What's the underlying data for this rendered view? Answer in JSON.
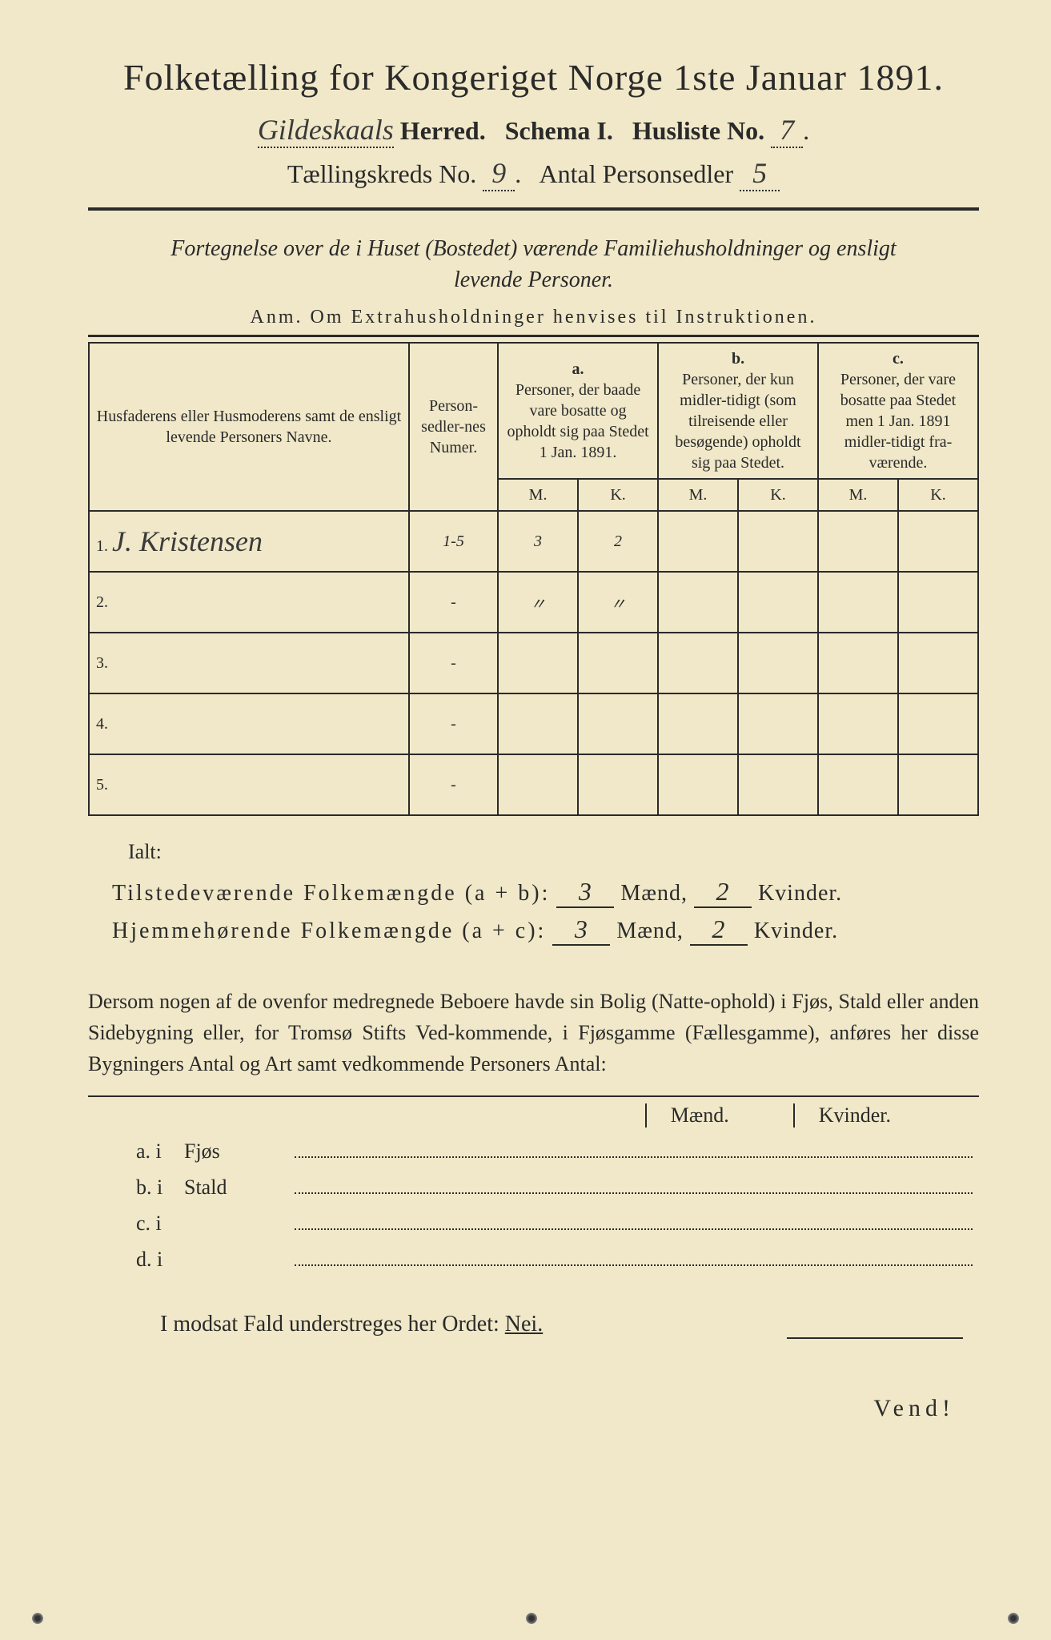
{
  "header": {
    "title": "Folketælling for Kongeriget Norge 1ste Januar 1891.",
    "herred_hand": "Gildeskaals",
    "herred_label": "Herred.",
    "schema": "Schema I.",
    "husliste_label": "Husliste No.",
    "husliste_no": "7",
    "kreds_label": "Tællingskreds No.",
    "kreds_no": "9",
    "personsedler_label": "Antal Personsedler",
    "personsedler_no": "5"
  },
  "subtitle": {
    "line1": "Fortegnelse over de i Huset (Bostedet) værende Familiehusholdninger og ensligt",
    "line2": "levende Personer.",
    "anm": "Anm.  Om Extrahusholdninger henvises til Instruktionen."
  },
  "table": {
    "col_name": "Husfaderens eller Husmoderens samt de ensligt levende Personers Navne.",
    "col_num": "Person-sedler-nes Numer.",
    "col_a_head": "a.",
    "col_a": "Personer, der baade vare bosatte og opholdt sig paa Stedet 1 Jan. 1891.",
    "col_b_head": "b.",
    "col_b": "Personer, der kun midler-tidigt (som tilreisende eller besøgende) opholdt sig paa Stedet.",
    "col_c_head": "c.",
    "col_c": "Personer, der vare bosatte paa Stedet men 1 Jan. 1891 midler-tidigt fra-værende.",
    "m": "M.",
    "k": "K.",
    "rows": [
      {
        "n": "1.",
        "name": "J. Kristensen",
        "num": "1-5",
        "am": "3",
        "ak": "2",
        "bm": "",
        "bk": "",
        "cm": "",
        "ck": ""
      },
      {
        "n": "2.",
        "name": "",
        "num": "-",
        "am": "〃",
        "ak": "〃",
        "bm": "",
        "bk": "",
        "cm": "",
        "ck": ""
      },
      {
        "n": "3.",
        "name": "",
        "num": "-",
        "am": "",
        "ak": "",
        "bm": "",
        "bk": "",
        "cm": "",
        "ck": ""
      },
      {
        "n": "4.",
        "name": "",
        "num": "-",
        "am": "",
        "ak": "",
        "bm": "",
        "bk": "",
        "cm": "",
        "ck": ""
      },
      {
        "n": "5.",
        "name": "",
        "num": "-",
        "am": "",
        "ak": "",
        "bm": "",
        "bk": "",
        "cm": "",
        "ck": ""
      }
    ]
  },
  "totals": {
    "ialt": "Ialt:",
    "line1_label": "Tilstedeværende Folkemængde (a + b):",
    "line1_m": "3",
    "line1_k": "2",
    "line2_label": "Hjemmehørende Folkemængde (a + c):",
    "line2_m": "3",
    "line2_k": "2",
    "maend": "Mænd,",
    "kvinder": "Kvinder."
  },
  "para": "Dersom nogen af de ovenfor medregnede Beboere havde sin Bolig (Natte-ophold) i Fjøs, Stald eller anden Sidebygning eller, for Tromsø Stifts Ved-kommende, i Fjøsgamme (Fællesgamme), anføres her disse Bygningers Antal og Art samt vedkommende Personers Antal:",
  "mk": {
    "maend": "Mænd.",
    "kvinder": "Kvinder."
  },
  "list": {
    "a": {
      "lab": "a.  i",
      "txt": "Fjøs"
    },
    "b": {
      "lab": "b.  i",
      "txt": "Stald"
    },
    "c": {
      "lab": "c.  i",
      "txt": ""
    },
    "d": {
      "lab": "d.  i",
      "txt": ""
    }
  },
  "nei": {
    "text": "I modsat Fald understreges her Ordet:",
    "word": "Nei."
  },
  "vend": "Vend!",
  "colors": {
    "paper": "#f0e8c8",
    "ink": "#2a2a2a",
    "bg": "#1a1a1a"
  }
}
